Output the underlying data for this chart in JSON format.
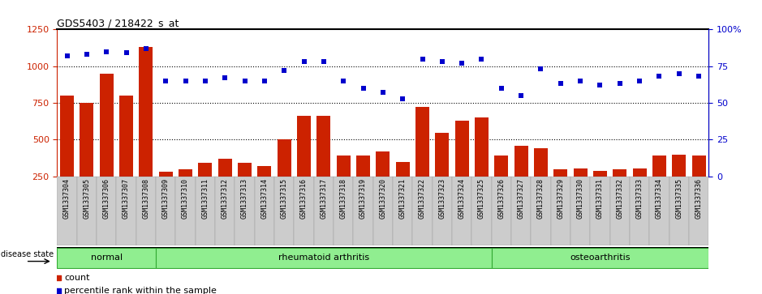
{
  "title": "GDS5403 / 218422_s_at",
  "samples": [
    "GSM1337304",
    "GSM1337305",
    "GSM1337306",
    "GSM1337307",
    "GSM1337308",
    "GSM1337309",
    "GSM1337310",
    "GSM1337311",
    "GSM1337312",
    "GSM1337313",
    "GSM1337314",
    "GSM1337315",
    "GSM1337316",
    "GSM1337317",
    "GSM1337318",
    "GSM1337319",
    "GSM1337320",
    "GSM1337321",
    "GSM1337322",
    "GSM1337323",
    "GSM1337324",
    "GSM1337325",
    "GSM1337326",
    "GSM1337327",
    "GSM1337328",
    "GSM1337329",
    "GSM1337330",
    "GSM1337331",
    "GSM1337332",
    "GSM1337333",
    "GSM1337334",
    "GSM1337335",
    "GSM1337336"
  ],
  "counts": [
    800,
    750,
    950,
    800,
    1130,
    280,
    300,
    340,
    370,
    340,
    320,
    500,
    660,
    660,
    390,
    390,
    420,
    350,
    720,
    545,
    630,
    650,
    390,
    460,
    440,
    300,
    305,
    285,
    300,
    305,
    390,
    395,
    390
  ],
  "percentile": [
    82,
    83,
    85,
    84,
    87,
    65,
    65,
    65,
    67,
    65,
    65,
    72,
    78,
    78,
    65,
    60,
    57,
    53,
    80,
    78,
    77,
    80,
    60,
    55,
    73,
    63,
    65,
    62,
    63,
    65,
    68,
    70,
    68
  ],
  "groups": [
    {
      "label": "normal",
      "start": 0,
      "end": 4
    },
    {
      "label": "rheumatoid arthritis",
      "start": 5,
      "end": 21
    },
    {
      "label": "osteoarthritis",
      "start": 22,
      "end": 32
    }
  ],
  "bar_color": "#cc2200",
  "dot_color": "#0000cc",
  "left_ylim": [
    250,
    1250
  ],
  "right_ylim": [
    0,
    100
  ],
  "left_yticks": [
    250,
    500,
    750,
    1000,
    1250
  ],
  "right_yticks": [
    0,
    25,
    50,
    75,
    100
  ],
  "dotted_vals": [
    500,
    750,
    1000
  ],
  "group_color": "#90EE90",
  "group_border_color": "#33aa33",
  "bar_color_legend": "#cc2200",
  "dot_color_legend": "#0000cc",
  "tick_label_bg": "#d0d0d0",
  "title_fontsize": 9,
  "axis_fontsize": 8,
  "tick_fontsize": 6,
  "legend_fontsize": 8,
  "group_fontsize": 8
}
